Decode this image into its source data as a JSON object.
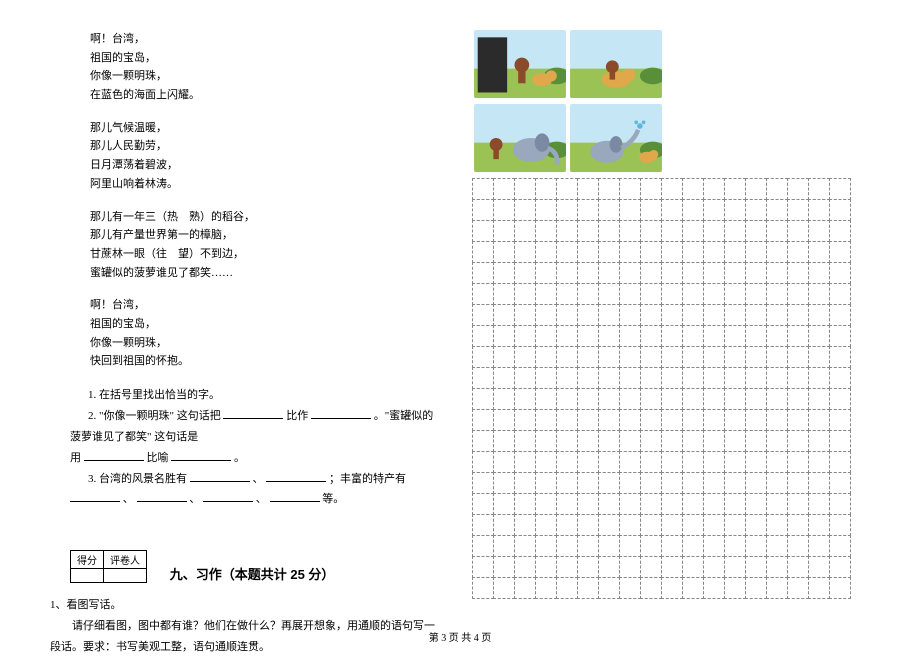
{
  "poem": {
    "stanzas": [
      [
        "啊！台湾，",
        "祖国的宝岛，",
        "你像一颗明珠，",
        "在蓝色的海面上闪耀。"
      ],
      [
        "那儿气候温暖，",
        "那儿人民勤劳，",
        "日月潭荡着碧波，",
        "阿里山响着林涛。"
      ],
      [
        "那儿有一年三（热　熟）的稻谷，",
        "那儿有产量世界第一的樟脑，",
        "甘蔗林一眼（往　望）不到边，",
        "蜜罐似的菠萝谁见了都笑……"
      ],
      [
        "啊！台湾，",
        "祖国的宝岛，",
        "你像一颗明珠，",
        "快回到祖国的怀抱。"
      ]
    ]
  },
  "questions": {
    "q1": "1. 在括号里找出恰当的字。",
    "q2a": "2. \"你像一颗明珠\" 这句话把",
    "q2b": "比作",
    "q2c": "。\"蜜罐似的菠萝谁见了都笑\" 这句话是",
    "q2d": "用",
    "q2e": "比喻",
    "q2f": "。",
    "q3a": "3. 台湾的风景名胜有",
    "q3b": "、",
    "q3c": "；丰富的特产有",
    "q3d": "、",
    "q3e": "、",
    "q3f": "、",
    "q3g": "等。"
  },
  "scoreBox": {
    "c1": "得分",
    "c2": "评卷人"
  },
  "section": {
    "title": "九、习作（本题共计 25 分）"
  },
  "task": {
    "num": "1、看图写话。",
    "instr": "请仔细看图，图中都有谁？他们在做什么？再展开想象，用通顺的语句写一段话。要求：书写美观工整，语句通顺连贯。"
  },
  "images": {
    "colors": {
      "sky": "#c4e6f5",
      "ground": "#9bc254",
      "darkHole": "#2b2b2b",
      "monkey": "#8b4a2a",
      "lion": "#e0a84a",
      "elephant": "#9aa8bd",
      "elephantEar": "#7b8aa3",
      "water": "#5fb6dd",
      "bush": "#5a8f3a"
    }
  },
  "grid": {
    "cols": 18,
    "rows": 20
  },
  "blankWidths": {
    "short": 50,
    "mid": 60,
    "long": 70
  },
  "footer": "第 3 页  共 4 页"
}
